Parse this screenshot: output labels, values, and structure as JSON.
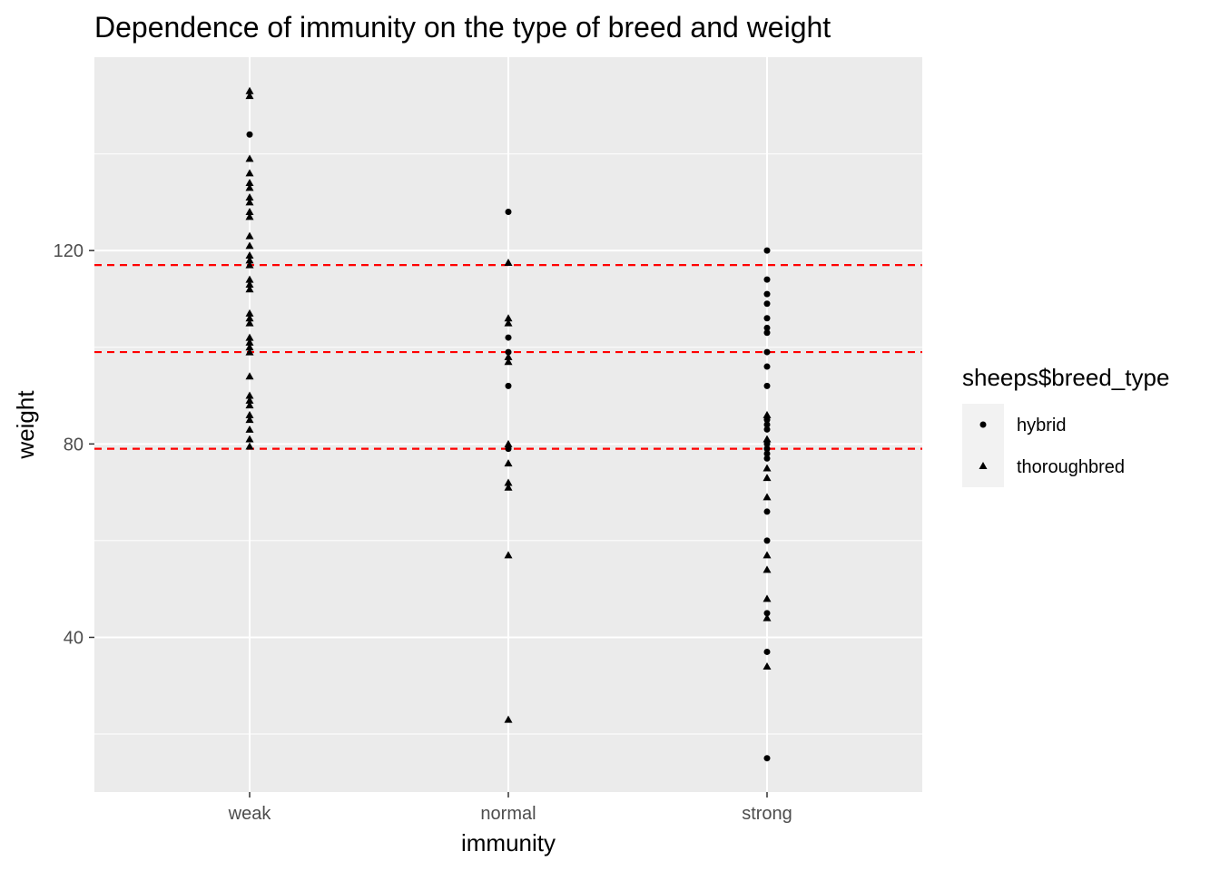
{
  "chart_data": {
    "type": "scatter",
    "title": "Dependence of immunity on the type of breed and weight",
    "xlabel": "immunity",
    "ylabel": "weight",
    "categories": [
      "weak",
      "normal",
      "strong"
    ],
    "y_ticks": [
      "40",
      "80",
      "120"
    ],
    "y_tick_values": [
      40,
      80,
      120
    ],
    "ylim": [
      8,
      160
    ],
    "grid": true,
    "panel_background": "#ebebeb",
    "grid_color": "#ffffff",
    "hlines": {
      "values": [
        79,
        99,
        117
      ],
      "color": "#ff0000",
      "style": "dashed"
    },
    "legend": {
      "title": "sheeps$breed_type",
      "position": "right",
      "items": [
        {
          "label": "hybrid",
          "shape": "circle"
        },
        {
          "label": "thoroughbred",
          "shape": "triangle"
        }
      ]
    },
    "series": [
      {
        "name": "hybrid",
        "shape": "circle",
        "color": "#000000",
        "points": [
          {
            "x": "weak",
            "y": 144
          },
          {
            "x": "normal",
            "y": 128
          },
          {
            "x": "normal",
            "y": 102
          },
          {
            "x": "normal",
            "y": 99
          },
          {
            "x": "normal",
            "y": 92
          },
          {
            "x": "normal",
            "y": 79
          },
          {
            "x": "strong",
            "y": 120
          },
          {
            "x": "strong",
            "y": 114
          },
          {
            "x": "strong",
            "y": 111
          },
          {
            "x": "strong",
            "y": 109
          },
          {
            "x": "strong",
            "y": 106
          },
          {
            "x": "strong",
            "y": 104
          },
          {
            "x": "strong",
            "y": 103
          },
          {
            "x": "strong",
            "y": 99
          },
          {
            "x": "strong",
            "y": 96
          },
          {
            "x": "strong",
            "y": 92
          },
          {
            "x": "strong",
            "y": 85
          },
          {
            "x": "strong",
            "y": 84
          },
          {
            "x": "strong",
            "y": 83
          },
          {
            "x": "strong",
            "y": 80
          },
          {
            "x": "strong",
            "y": 79
          },
          {
            "x": "strong",
            "y": 78
          },
          {
            "x": "strong",
            "y": 77
          },
          {
            "x": "strong",
            "y": 66
          },
          {
            "x": "strong",
            "y": 60
          },
          {
            "x": "strong",
            "y": 45
          },
          {
            "x": "strong",
            "y": 37
          },
          {
            "x": "strong",
            "y": 15
          }
        ]
      },
      {
        "name": "thoroughbred",
        "shape": "triangle",
        "color": "#000000",
        "points": [
          {
            "x": "weak",
            "y": 153
          },
          {
            "x": "weak",
            "y": 152
          },
          {
            "x": "weak",
            "y": 139
          },
          {
            "x": "weak",
            "y": 136
          },
          {
            "x": "weak",
            "y": 134
          },
          {
            "x": "weak",
            "y": 133
          },
          {
            "x": "weak",
            "y": 131
          },
          {
            "x": "weak",
            "y": 130
          },
          {
            "x": "weak",
            "y": 128
          },
          {
            "x": "weak",
            "y": 127
          },
          {
            "x": "weak",
            "y": 123
          },
          {
            "x": "weak",
            "y": 121
          },
          {
            "x": "weak",
            "y": 119
          },
          {
            "x": "weak",
            "y": 118
          },
          {
            "x": "weak",
            "y": 117
          },
          {
            "x": "weak",
            "y": 114
          },
          {
            "x": "weak",
            "y": 113
          },
          {
            "x": "weak",
            "y": 112
          },
          {
            "x": "weak",
            "y": 107
          },
          {
            "x": "weak",
            "y": 106
          },
          {
            "x": "weak",
            "y": 105
          },
          {
            "x": "weak",
            "y": 102
          },
          {
            "x": "weak",
            "y": 101
          },
          {
            "x": "weak",
            "y": 100
          },
          {
            "x": "weak",
            "y": 99
          },
          {
            "x": "weak",
            "y": 94
          },
          {
            "x": "weak",
            "y": 90
          },
          {
            "x": "weak",
            "y": 89
          },
          {
            "x": "weak",
            "y": 88
          },
          {
            "x": "weak",
            "y": 86
          },
          {
            "x": "weak",
            "y": 85
          },
          {
            "x": "weak",
            "y": 83
          },
          {
            "x": "weak",
            "y": 81
          },
          {
            "x": "weak",
            "y": 79.5
          },
          {
            "x": "normal",
            "y": 117.5
          },
          {
            "x": "normal",
            "y": 106
          },
          {
            "x": "normal",
            "y": 105
          },
          {
            "x": "normal",
            "y": 98
          },
          {
            "x": "normal",
            "y": 97
          },
          {
            "x": "normal",
            "y": 80
          },
          {
            "x": "normal",
            "y": 76
          },
          {
            "x": "normal",
            "y": 72
          },
          {
            "x": "normal",
            "y": 71
          },
          {
            "x": "normal",
            "y": 57
          },
          {
            "x": "normal",
            "y": 23
          },
          {
            "x": "strong",
            "y": 86
          },
          {
            "x": "strong",
            "y": 81
          },
          {
            "x": "strong",
            "y": 75
          },
          {
            "x": "strong",
            "y": 73
          },
          {
            "x": "strong",
            "y": 69
          },
          {
            "x": "strong",
            "y": 57
          },
          {
            "x": "strong",
            "y": 54
          },
          {
            "x": "strong",
            "y": 48
          },
          {
            "x": "strong",
            "y": 44
          },
          {
            "x": "strong",
            "y": 34
          }
        ]
      }
    ]
  }
}
